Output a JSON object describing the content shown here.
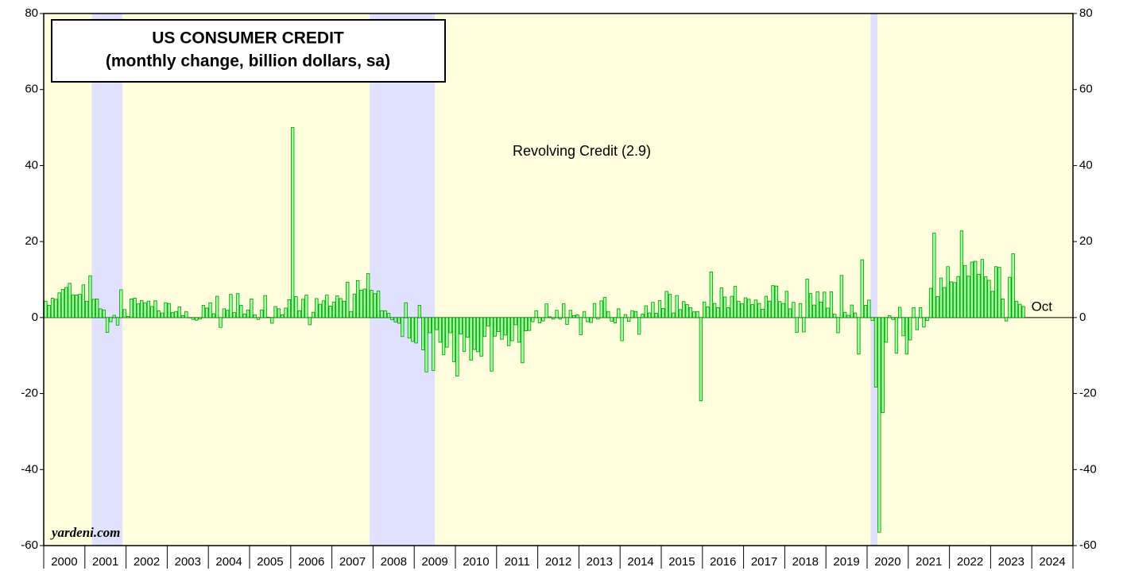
{
  "chart_data": {
    "type": "bar",
    "title": [
      "US CONSUMER CREDIT",
      "(monthly change, billion dollars, sa)"
    ],
    "annotation": "Revolving Credit (2.9)",
    "last_label": "Oct",
    "source": "yardeni.com",
    "color": "#99ff99",
    "edge_color": "#009900",
    "background": "#ffffdd",
    "recession_color": "#e0e0ff",
    "recessions": [
      [
        2001.167,
        2001.917
      ],
      [
        2007.917,
        2009.5
      ],
      [
        2020.083,
        2020.25
      ]
    ],
    "xlim": [
      2000,
      2025
    ],
    "years": [
      2000,
      2001,
      2002,
      2003,
      2004,
      2005,
      2006,
      2007,
      2008,
      2009,
      2010,
      2011,
      2012,
      2013,
      2014,
      2015,
      2016,
      2017,
      2018,
      2019,
      2020,
      2021,
      2022,
      2023,
      2024
    ],
    "ylim": [
      -60,
      80
    ],
    "yticks": [
      -60,
      -40,
      -20,
      0,
      20,
      40,
      60,
      80
    ],
    "values": [
      4.3,
      3.2,
      5.1,
      4.8,
      6.5,
      7.4,
      7.9,
      9.0,
      6.0,
      5.9,
      6.1,
      8.6,
      4.3,
      11.0,
      4.8,
      4.9,
      2.3,
      2.0,
      -3.9,
      -1.1,
      0.6,
      -2.0,
      7.3,
      2.1,
      0.3,
      4.9,
      5.1,
      3.6,
      4.5,
      3.9,
      4.3,
      2.9,
      4.4,
      1.8,
      1.2,
      3.9,
      3.7,
      1.3,
      1.6,
      2.8,
      0.5,
      1.6,
      0.0,
      -0.5,
      -0.7,
      -0.4,
      3.2,
      2.5,
      3.9,
      1.0,
      5.6,
      -2.6,
      2.3,
      1.9,
      6.1,
      1.3,
      6.3,
      3.2,
      0.9,
      2.0,
      4.9,
      0.7,
      -0.5,
      2.0,
      5.8,
      0.1,
      -1.5,
      2.9,
      2.3,
      0.7,
      2.5,
      4.7,
      50.0,
      5.5,
      1.8,
      4.8,
      5.9,
      -1.9,
      1.4,
      5.0,
      3.5,
      4.4,
      5.9,
      3.0,
      4.1,
      5.7,
      5.0,
      4.3,
      9.3,
      1.6,
      6.2,
      9.7,
      7.2,
      7.5,
      11.6,
      7.2,
      6.3,
      7.0,
      1.8,
      1.8,
      1.1,
      -0.6,
      -1.2,
      -1.5,
      -5.0,
      3.9,
      -5.4,
      -6.3,
      -6.7,
      3.2,
      -8.5,
      -14.3,
      -4.0,
      -13.9,
      -3.2,
      -6.5,
      -9.8,
      -7.8,
      -4.0,
      -11.6,
      -15.4,
      -4.3,
      -8.9,
      -5.2,
      -11.2,
      -8.4,
      -9.0,
      -10.2,
      -5.0,
      -2.2,
      -14.1,
      -4.9,
      -3.7,
      -5.7,
      -4.6,
      -7.4,
      -6.1,
      -1.9,
      -6.5,
      -11.9,
      -3.5,
      -3.4,
      -1.1,
      1.8,
      -1.4,
      -0.9,
      3.6,
      0.2,
      -0.4,
      1.9,
      -0.4,
      3.6,
      -1.8,
      1.9,
      0.5,
      0.7,
      -4.5,
      1.6,
      -1.1,
      -1.3,
      3.7,
      -0.4,
      4.4,
      5.3,
      1.6,
      -1.0,
      -1.4,
      2.3,
      -6.1,
      0.8,
      -1.0,
      1.8,
      1.6,
      -4.4,
      0.9,
      3.1,
      1.2,
      4.0,
      1.1,
      4.5,
      2.4,
      6.9,
      6.1,
      1.2,
      5.8,
      2.1,
      4.2,
      3.4,
      2.6,
      1.5,
      1.6,
      -21.9,
      4.1,
      2.8,
      12.0,
      3.7,
      2.6,
      7.8,
      5.4,
      2.6,
      5.6,
      8.2,
      4.3,
      3.6,
      5.2,
      4.8,
      3.4,
      4.6,
      3.7,
      2.2,
      5.6,
      4.3,
      8.4,
      8.3,
      4.2,
      3.7,
      6.9,
      2.3,
      4.0,
      -3.9,
      3.7,
      -3.8,
      10.1,
      6.3,
      3.3,
      6.8,
      4.1,
      6.7,
      2.5,
      6.8,
      0.9,
      -4.0,
      11.1,
      1.4,
      0.6,
      3.3,
      1.2,
      -9.6,
      15.2,
      3.2,
      4.6,
      -0.8,
      -18.3,
      -56.5,
      -25.0,
      -6.5,
      0.5,
      -0.5,
      -9.4,
      2.7,
      -4.8,
      -9.6,
      -5.9,
      2.6,
      -3.2,
      2.6,
      -2.5,
      -0.8,
      7.7,
      22.2,
      5.5,
      10.4,
      7.9,
      13.4,
      9.4,
      9.2,
      10.8,
      22.8,
      13.7,
      10.9,
      14.6,
      14.8,
      11.4,
      15.3,
      10.7,
      9.8,
      6.9,
      13.4,
      13.2,
      4.9,
      -0.9,
      10.6,
      16.8,
      4.3,
      3.5,
      2.9
    ]
  }
}
